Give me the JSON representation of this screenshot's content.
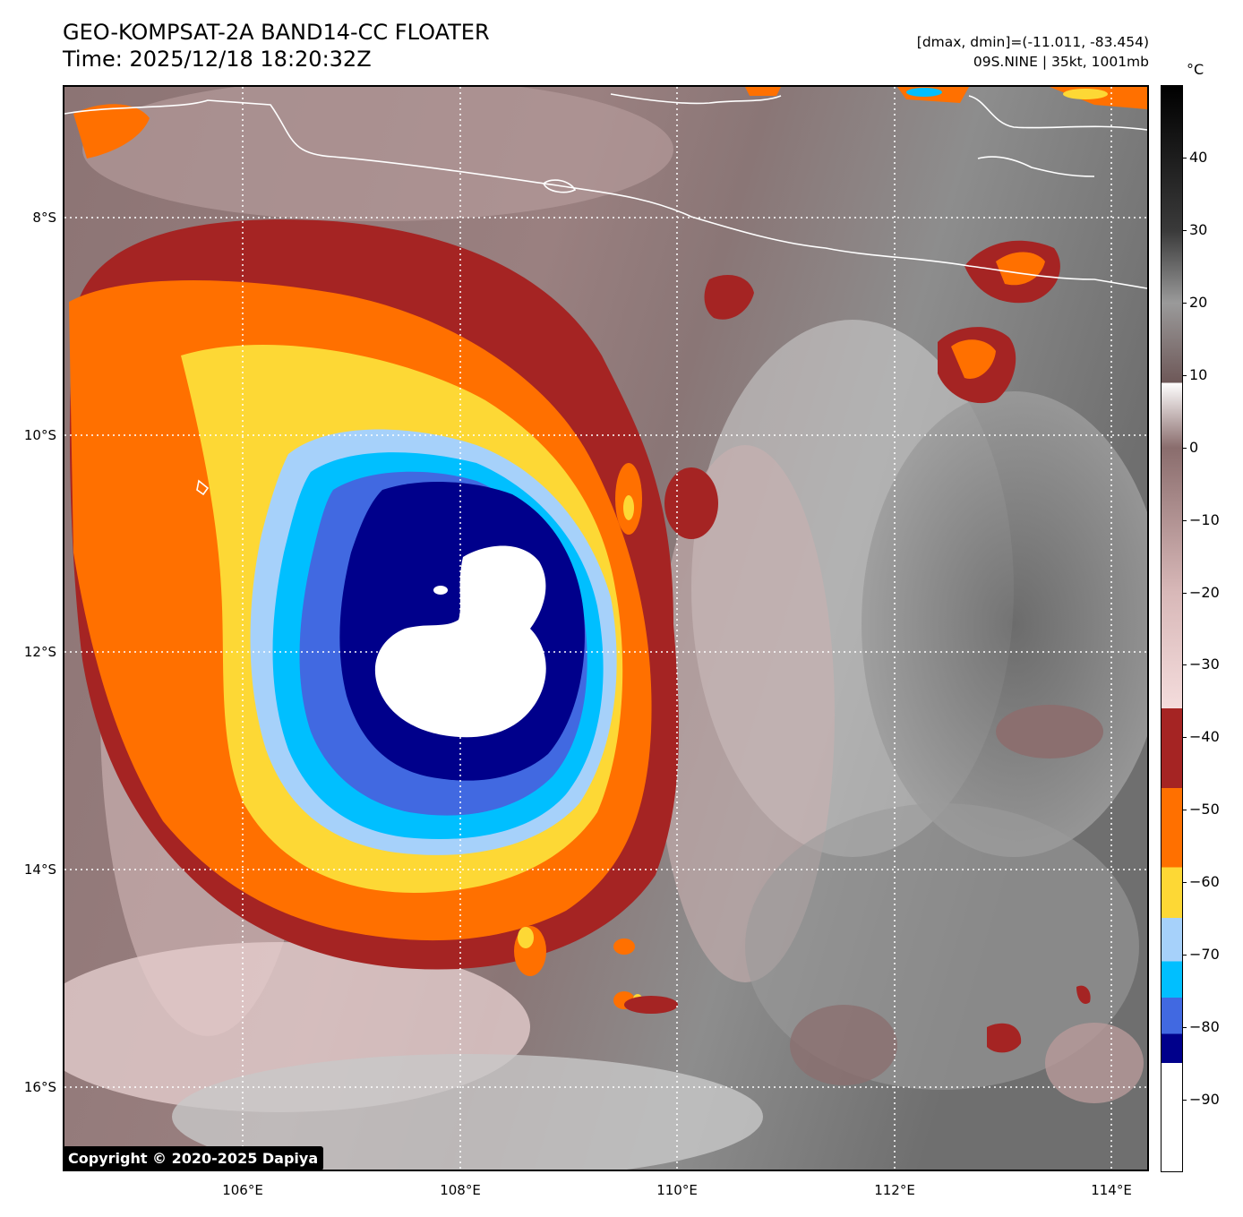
{
  "header": {
    "title_line1": "GEO-KOMPSAT-2A BAND14-CC FLOATER",
    "title_line2": "Time: 2025/12/18 18:20:32Z",
    "meta_line1": "[dmax, dmin]=(-11.011, -83.454)",
    "meta_line2": "09S.NINE | 35kt, 1001mb"
  },
  "map": {
    "lat_labels": [
      "8°S",
      "10°S",
      "12°S",
      "14°S",
      "16°S"
    ],
    "lon_labels": [
      "106°E",
      "108°E",
      "110°E",
      "112°E",
      "114°E"
    ],
    "copyright": "Copyright © 2020-2025 Dapiya"
  },
  "colorbar": {
    "unit": "°C",
    "ticks": [
      "40",
      "30",
      "20",
      "10",
      "0",
      "−10",
      "−20",
      "−30",
      "−40",
      "−50",
      "−60",
      "−70",
      "−80",
      "−90"
    ],
    "range": [
      -100,
      50
    ],
    "bands": [
      {
        "from": -100,
        "to": -85,
        "color": "#ffffff"
      },
      {
        "from": -85,
        "to": -81,
        "color": "#00008b"
      },
      {
        "from": -81,
        "to": -76,
        "color": "#4169e1"
      },
      {
        "from": -76,
        "to": -71,
        "color": "#00bfff"
      },
      {
        "from": -71,
        "to": -65,
        "color": "#a6d1fa"
      },
      {
        "from": -65,
        "to": -58,
        "color": "#fdd835"
      },
      {
        "from": -58,
        "to": -47,
        "color": "#ff7000"
      },
      {
        "from": -47,
        "to": -36,
        "color": "#a52423"
      }
    ],
    "gradient_stops": [
      {
        "value": -36,
        "color": "#f4dcdc"
      },
      {
        "value": -20,
        "color": "#d8b8b8"
      },
      {
        "value": 0,
        "color": "#8a6d6d"
      },
      {
        "value": 9,
        "color": "#6e5858"
      },
      {
        "value": 9,
        "color": "#ffffff"
      },
      {
        "value": 20,
        "color": "#9a9a9a"
      },
      {
        "value": 30,
        "color": "#3a3a3a"
      },
      {
        "value": 50,
        "color": "#000000"
      }
    ]
  }
}
